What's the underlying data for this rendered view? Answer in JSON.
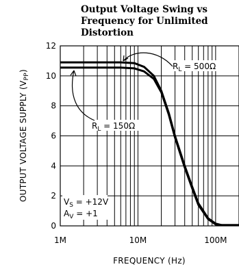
{
  "chart_data": {
    "type": "line",
    "title": [
      "Output Voltage Swing vs",
      "Frequency for Unlimited",
      "Distortion"
    ],
    "xlabel": "FREQUENCY (Hz)",
    "ylabel": {
      "main": "OUTPUT VOLTAGE SUPPLY (V",
      "sub": "PP",
      "end": ")"
    },
    "xscale": "log",
    "xlim": [
      1000000,
      200000000
    ],
    "ylim": [
      0,
      12
    ],
    "x_ticks": [
      {
        "value": 1000000,
        "label": "1M"
      },
      {
        "value": 10000000,
        "label": "10M"
      },
      {
        "value": 100000000,
        "label": "100M"
      }
    ],
    "y_ticks": [
      0,
      2,
      4,
      6,
      8,
      10,
      12
    ],
    "grid": true,
    "series": [
      {
        "name": "RL = 500Ω",
        "label": {
          "main": "R",
          "sub": "L",
          "rest": " = 500Ω"
        },
        "x": [
          1000000,
          3000000,
          6000000,
          9000000,
          12000000,
          16000000,
          20000000,
          25000000,
          30000000,
          40000000,
          50000000,
          60000000,
          80000000,
          100000000,
          120000000,
          200000000
        ],
        "y": [
          10.9,
          10.9,
          10.9,
          10.85,
          10.6,
          10.0,
          9.0,
          7.5,
          6.0,
          4.0,
          2.6,
          1.5,
          0.5,
          0.15,
          0.05,
          0.05
        ]
      },
      {
        "name": "RL = 150Ω",
        "label": {
          "main": "R",
          "sub": "L",
          "rest": " = 150Ω"
        },
        "x": [
          1000000,
          3000000,
          6000000,
          9000000,
          12000000,
          16000000,
          20000000,
          25000000,
          30000000,
          40000000,
          50000000,
          60000000,
          80000000,
          100000000,
          120000000,
          200000000
        ],
        "y": [
          10.55,
          10.55,
          10.55,
          10.5,
          10.3,
          9.8,
          8.9,
          7.4,
          5.9,
          3.9,
          2.5,
          1.4,
          0.45,
          0.1,
          0.05,
          0.05
        ]
      }
    ],
    "annotations": [
      {
        "main": "V",
        "sub": "S",
        "rest": " = +12V"
      },
      {
        "main": "A",
        "sub": "V",
        "rest": " = +1"
      }
    ]
  }
}
